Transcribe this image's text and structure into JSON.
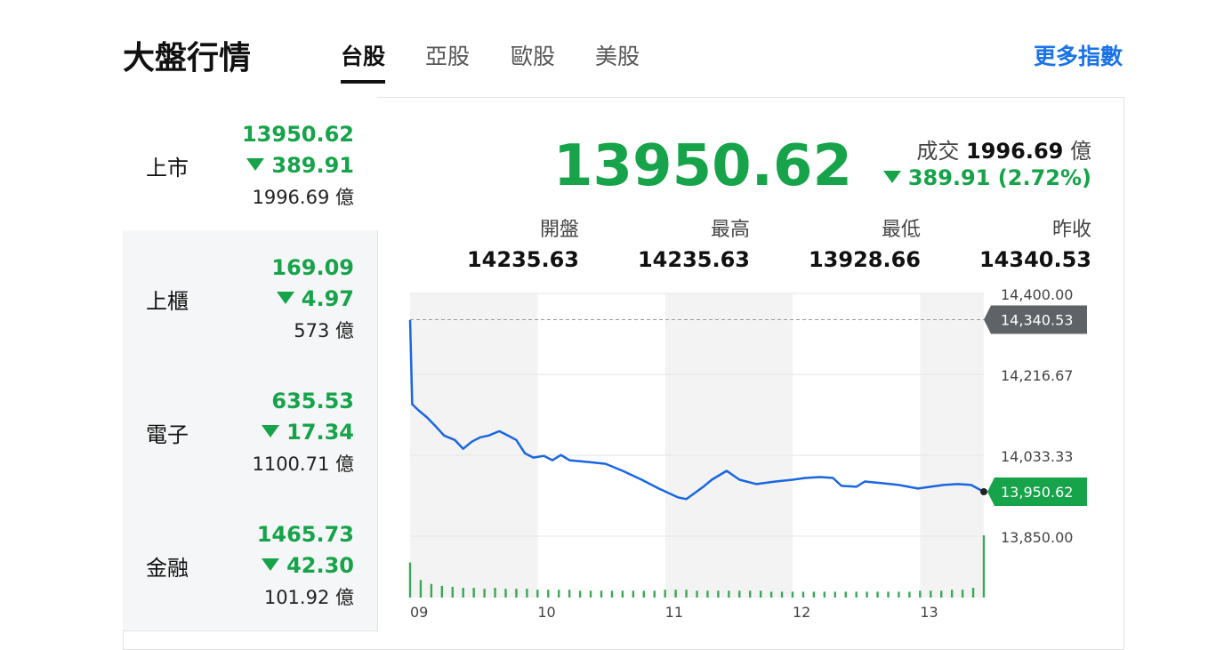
{
  "header": {
    "title": "大盤行情",
    "tabs": [
      "台股",
      "亞股",
      "歐股",
      "美股"
    ],
    "more": "更多指數"
  },
  "markets": [
    {
      "name": "上市",
      "value": "13950.62",
      "change": "389.91",
      "volume": "1996.69",
      "unit": "億"
    },
    {
      "name": "上櫃",
      "value": "169.09",
      "change": "4.97",
      "volume": "573",
      "unit": "億"
    },
    {
      "name": "電子",
      "value": "635.53",
      "change": "17.34",
      "volume": "1100.71",
      "unit": "億"
    },
    {
      "name": "金融",
      "value": "1465.73",
      "change": "42.30",
      "volume": "101.92",
      "unit": "億"
    }
  ],
  "summary": {
    "value": "13950.62",
    "volume_label": "成交",
    "volume": "1996.69",
    "unit": "億",
    "change": "389.91",
    "change_pct": "(2.72%)",
    "stats": [
      {
        "label": "開盤",
        "value": "14235.63"
      },
      {
        "label": "最高",
        "value": "14235.63"
      },
      {
        "label": "最低",
        "value": "13928.66"
      },
      {
        "label": "昨收",
        "value": "14340.53"
      }
    ]
  },
  "chart_data": {
    "type": "line",
    "color": "#1a66e0",
    "x": [
      0,
      1,
      4,
      8,
      12,
      16,
      21,
      25,
      29,
      33,
      37,
      42,
      46,
      50,
      54,
      58,
      63,
      67,
      71,
      75,
      84,
      92,
      100,
      109,
      117,
      126,
      130,
      134,
      138,
      142,
      149,
      155,
      163,
      172,
      180,
      186,
      193,
      199,
      203,
      210,
      214,
      222,
      230,
      239,
      245,
      251,
      258,
      264,
      270
    ],
    "values": [
      14340,
      14149,
      14135,
      14119,
      14099,
      14078,
      14068,
      14048,
      14064,
      14074,
      14078,
      14088,
      14078,
      14068,
      14038,
      14028,
      14032,
      14022,
      14034,
      14022,
      14018,
      14014,
      13998,
      13978,
      13958,
      13938,
      13934,
      13948,
      13962,
      13978,
      13998,
      13978,
      13968,
      13974,
      13978,
      13982,
      13984,
      13982,
      13964,
      13962,
      13974,
      13970,
      13966,
      13958,
      13962,
      13966,
      13968,
      13966,
      13950.62
    ],
    "xlim": [
      0,
      270
    ],
    "xticks": [
      {
        "value": 0,
        "label": "09"
      },
      {
        "value": 60,
        "label": "10"
      },
      {
        "value": 120,
        "label": "11"
      },
      {
        "value": 180,
        "label": "12"
      },
      {
        "value": 240,
        "label": "13"
      }
    ],
    "ylim": [
      13850,
      14400
    ],
    "yticks": [
      {
        "value": 13850,
        "label": "13,850.00"
      },
      {
        "value": 14033.33,
        "label": "14,033.33"
      },
      {
        "value": 14216.67,
        "label": "14,216.67"
      },
      {
        "value": 14400,
        "label": "14,400.00"
      }
    ],
    "prev_close": {
      "value": 14340.53,
      "label": "14,340.53"
    },
    "last": {
      "value": 13950.62,
      "label": "13,950.62"
    },
    "volume": {
      "color": "#3aa757",
      "x": [
        0,
        5,
        10,
        15,
        20,
        25,
        30,
        35,
        40,
        45,
        50,
        55,
        60,
        65,
        70,
        75,
        80,
        85,
        90,
        95,
        100,
        105,
        110,
        115,
        120,
        125,
        130,
        135,
        140,
        145,
        150,
        155,
        160,
        165,
        170,
        175,
        180,
        185,
        190,
        195,
        200,
        205,
        210,
        215,
        220,
        225,
        230,
        235,
        240,
        245,
        250,
        255,
        260,
        265,
        270
      ],
      "values": [
        36,
        18,
        14,
        12,
        11,
        10,
        10,
        9,
        10,
        9,
        9,
        9,
        8,
        8,
        8,
        8,
        7,
        7,
        7,
        7,
        7,
        7,
        7,
        7,
        8,
        8,
        8,
        7,
        7,
        7,
        7,
        7,
        7,
        7,
        6,
        6,
        6,
        6,
        6,
        6,
        6,
        6,
        6,
        6,
        6,
        6,
        6,
        6,
        7,
        7,
        7,
        8,
        8,
        10,
        64
      ]
    }
  }
}
